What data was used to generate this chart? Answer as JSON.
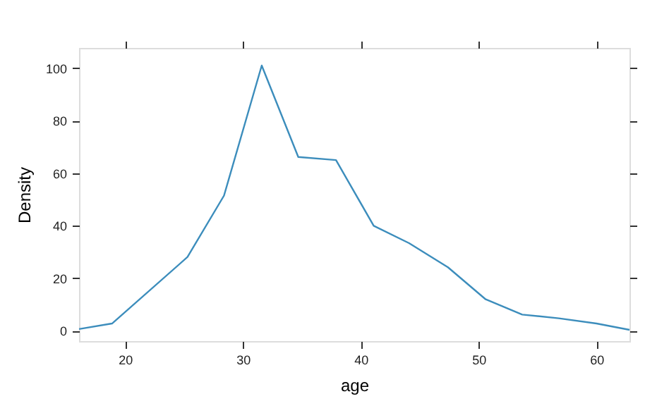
{
  "chart_data": {
    "type": "line",
    "xlabel": "age",
    "ylabel": "Density",
    "x": [
      16.1,
      18.9,
      25.3,
      28.4,
      31.6,
      34.7,
      37.9,
      41.1,
      44.1,
      47.4,
      50.6,
      53.7,
      56.8,
      60.0,
      62.8
    ],
    "series": [
      {
        "color": "#3c8dbc",
        "values": [
          0.7,
          2.8,
          28.1,
          51.5,
          101,
          66.2,
          65,
          40,
          33.4,
          24.2,
          12,
          6.2,
          4.8,
          2.8,
          0.4
        ]
      }
    ],
    "xlim": [
      16.1,
      62.8
    ],
    "ylim": [
      -3.9,
      107.7
    ],
    "xticks": [
      20,
      30,
      40,
      50,
      60
    ],
    "yticks": [
      0,
      20,
      40,
      60,
      80,
      100
    ],
    "grid": false,
    "marker": "none",
    "line_style": "solid"
  }
}
